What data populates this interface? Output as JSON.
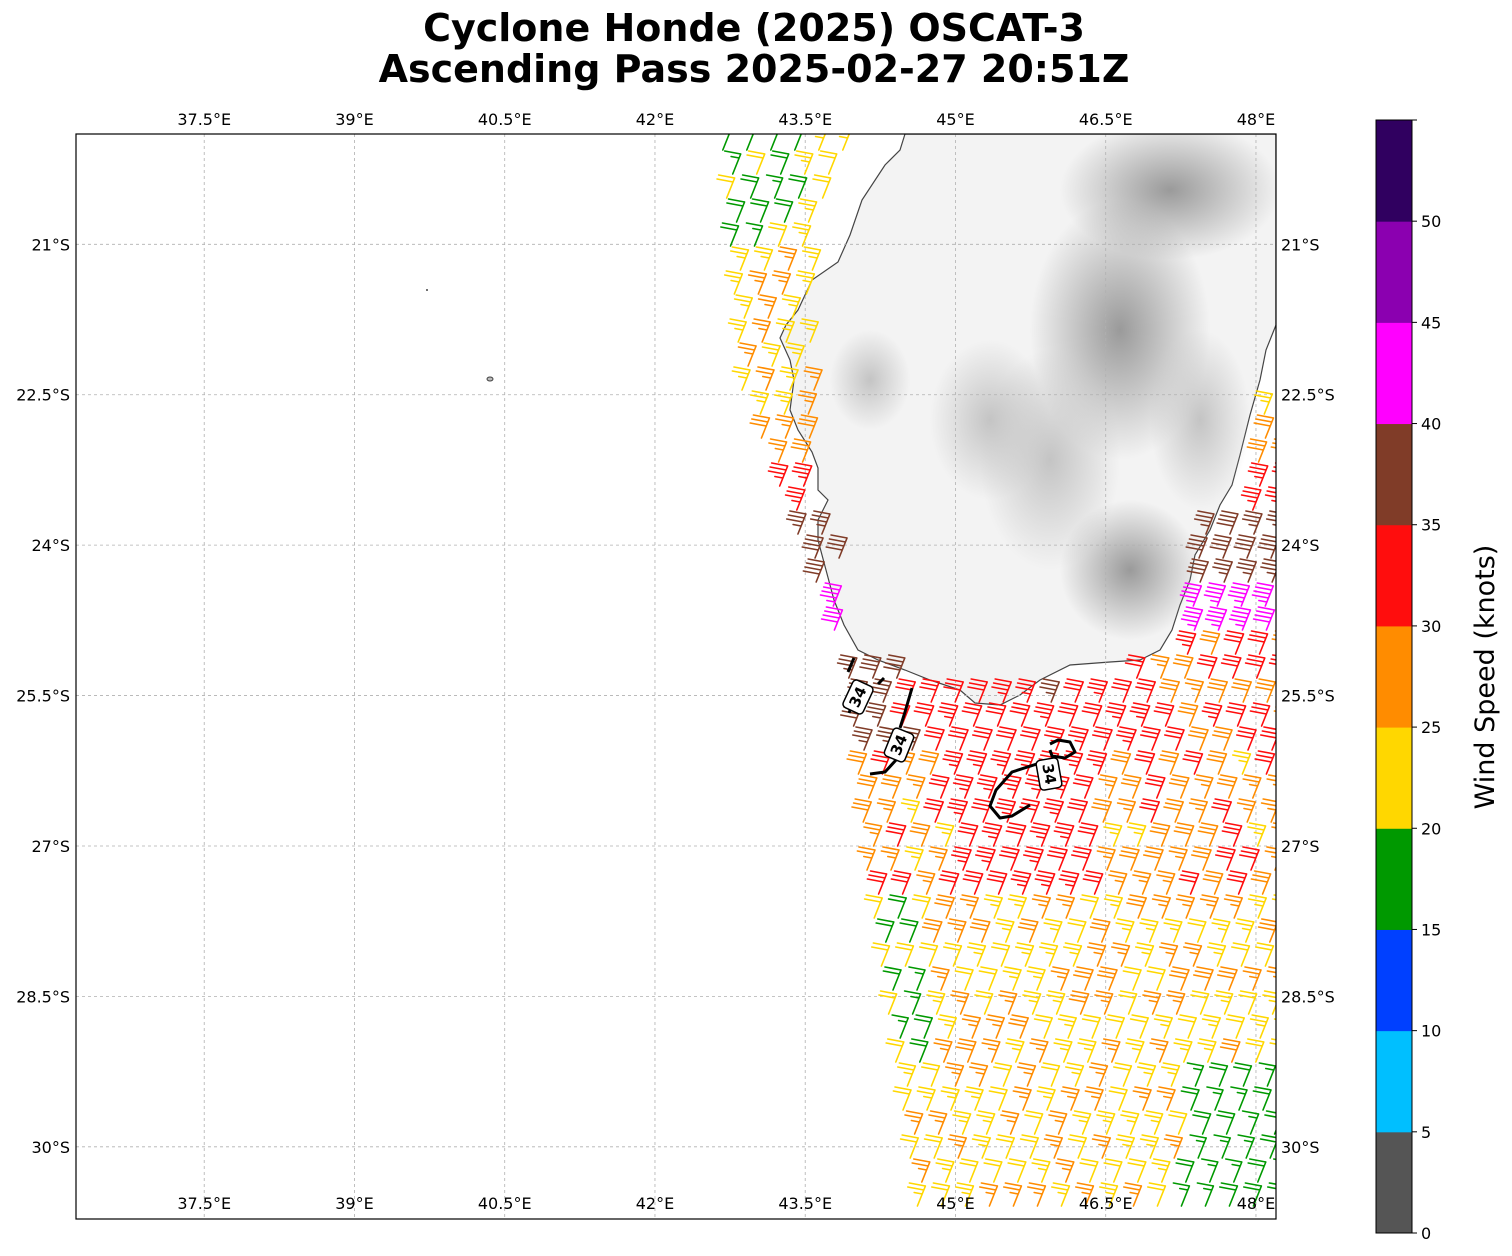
{
  "title": {
    "line1": "Cyclone Honde (2025) OSCAT-3",
    "line2": "Ascending Pass 2025-02-27 20:51Z"
  },
  "map": {
    "lon_ticks": [
      "37.5°E",
      "39°E",
      "40.5°E",
      "42°E",
      "43.5°E",
      "45°E",
      "46.5°E",
      "48°E"
    ],
    "lat_ticks": [
      "21°S",
      "22.5°S",
      "24°S",
      "25.5°S",
      "27°S",
      "28.5°S",
      "30°S"
    ],
    "lon_values": [
      37.5,
      39,
      40.5,
      42,
      43.5,
      45,
      46.5,
      48
    ],
    "lat_values": [
      -21,
      -22.5,
      -24,
      -25.5,
      -27,
      -28.5,
      -30
    ],
    "extent": {
      "lon": [
        36.22,
        48.2
      ],
      "lat": [
        -30.72,
        -19.9
      ]
    },
    "grid": true,
    "contour_label": "34",
    "land_shading": "grayscale topography"
  },
  "colorbar": {
    "title": "Wind Speed (knots)",
    "tick_labels": [
      "0",
      "5",
      "10",
      "15",
      "20",
      "25",
      "30",
      "35",
      "40",
      "45",
      "50"
    ],
    "bins": [
      {
        "min": 0,
        "max": 5,
        "color": "#555555"
      },
      {
        "min": 5,
        "max": 10,
        "color": "#00bfff"
      },
      {
        "min": 10,
        "max": 15,
        "color": "#0040ff"
      },
      {
        "min": 15,
        "max": 20,
        "color": "#009900"
      },
      {
        "min": 20,
        "max": 25,
        "color": "#ffd700"
      },
      {
        "min": 25,
        "max": 30,
        "color": "#ff8c00"
      },
      {
        "min": 30,
        "max": 35,
        "color": "#ff0d0d"
      },
      {
        "min": 35,
        "max": 40,
        "color": "#803c28"
      },
      {
        "min": 40,
        "max": 45,
        "color": "#ff00ff"
      },
      {
        "min": 45,
        "max": 50,
        "color": "#8b00b0"
      },
      {
        "min": 50,
        "max": 55,
        "color": "#300060"
      }
    ]
  }
}
